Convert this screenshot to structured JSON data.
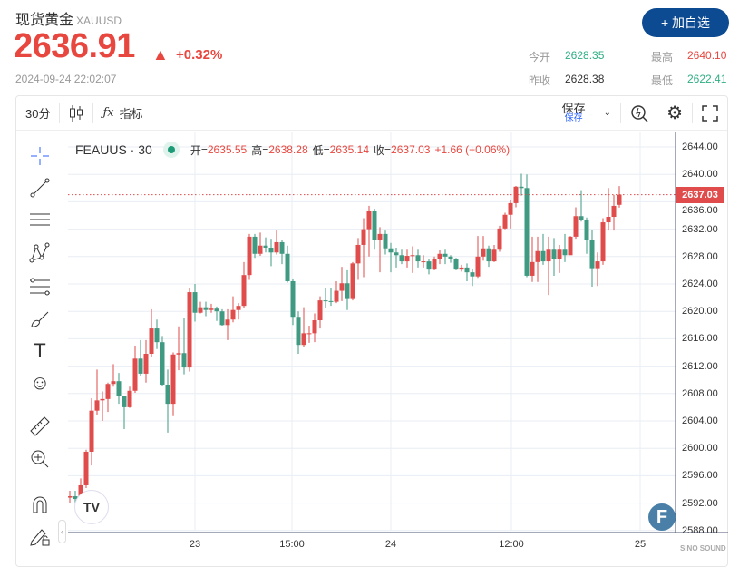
{
  "header": {
    "name": "现货黄金",
    "code": "XAUUSD",
    "price": "2636.91",
    "change_pct": "+0.32%",
    "timestamp": "2024-09-24 22:02:07",
    "add_button": "+ 加自选",
    "stats": [
      {
        "label": "今开",
        "value": "2628.35",
        "color": "green"
      },
      {
        "label": "最高",
        "value": "2640.10",
        "color": "red"
      },
      {
        "label": "昨收",
        "value": "2628.38",
        "color": "black"
      },
      {
        "label": "最低",
        "value": "2622.41",
        "color": "green"
      }
    ]
  },
  "toolbar": {
    "interval": "30分",
    "indicators": "指标",
    "save": "保存",
    "save_sub": "保存",
    "icons": [
      "candlestick-icon",
      "function-icon",
      "chevron-down-icon",
      "replay-icon",
      "gear-icon",
      "fullscreen-icon"
    ]
  },
  "left_tools": [
    "crosshair-icon",
    "trend-line-icon",
    "horizontal-lines-icon",
    "pattern-icon",
    "fib-icon",
    "brush-icon",
    "text-icon",
    "emoji-icon",
    "ruler-icon",
    "zoom-in-icon",
    "magnet-icon",
    "lock-draw-icon"
  ],
  "legend": {
    "symbol": "FEAUUS · 30",
    "open_label": "开=",
    "open": "2635.55",
    "high_label": "高=",
    "high": "2638.28",
    "low_label": "低=",
    "low": "2635.14",
    "close_label": "收=",
    "close": "2637.03",
    "change": "+1.66 (+0.06%)"
  },
  "watermark": "SINO SOUND",
  "chart_data": {
    "type": "candlestick",
    "interval": "30",
    "symbol": "FEAUUS",
    "colors": {
      "up": "#e04b4b",
      "down": "#3f9a81"
    },
    "ylim": [
      2586,
      2646
    ],
    "yticks": [
      "2644.00",
      "2640.00",
      "2636.00",
      "2632.00",
      "2628.00",
      "2624.00",
      "2620.00",
      "2616.00",
      "2612.00",
      "2608.00",
      "2604.00",
      "2600.00",
      "2596.00",
      "2592.00",
      "2588.00"
    ],
    "xticks": [
      "23",
      "15:00",
      "24",
      "12:00",
      "25"
    ],
    "last_price": "2637.03",
    "grid": true,
    "ohlc": [
      [
        2592.8,
        2593.8,
        2592.0,
        2593.0
      ],
      [
        2593.0,
        2593.8,
        2591.5,
        2592.6
      ],
      [
        2592.6,
        2595.6,
        2592.2,
        2594.6
      ],
      [
        2594.6,
        2599.8,
        2594.2,
        2599.5
      ],
      [
        2599.5,
        2607.3,
        2597.5,
        2605.5
      ],
      [
        2605.5,
        2611.5,
        2604.9,
        2607.0
      ],
      [
        2607.0,
        2608.3,
        2604.0,
        2607.2
      ],
      [
        2607.2,
        2609.6,
        2605.3,
        2609.4
      ],
      [
        2609.4,
        2612.3,
        2609.0,
        2609.8
      ],
      [
        2609.8,
        2611.0,
        2606.5,
        2607.7
      ],
      [
        2607.7,
        2607.1,
        2602.8,
        2606.0
      ],
      [
        2606.0,
        2609.0,
        2605.9,
        2608.4
      ],
      [
        2608.4,
        2615.0,
        2608.1,
        2613.1
      ],
      [
        2613.1,
        2615.8,
        2610.5,
        2610.9
      ],
      [
        2610.9,
        2615.8,
        2609.6,
        2613.8
      ],
      [
        2613.8,
        2620.3,
        2613.3,
        2617.5
      ],
      [
        2617.5,
        2618.8,
        2614.5,
        2615.5
      ],
      [
        2615.5,
        2616.4,
        2609.1,
        2609.3
      ],
      [
        2609.3,
        2611.5,
        2602.3,
        2606.5
      ],
      [
        2606.5,
        2614.0,
        2604.7,
        2613.7
      ],
      [
        2613.7,
        2617.8,
        2611.4,
        2613.9
      ],
      [
        2613.9,
        2619.0,
        2610.8,
        2611.8
      ],
      [
        2611.8,
        2623.4,
        2611.2,
        2622.8
      ],
      [
        2622.8,
        2624.0,
        2618.5,
        2619.8
      ],
      [
        2619.8,
        2621.4,
        2619.7,
        2620.6
      ],
      [
        2620.6,
        2621.4,
        2619.3,
        2620.2
      ],
      [
        2620.2,
        2621.1,
        2619.8,
        2620.4
      ],
      [
        2620.4,
        2620.7,
        2618.6,
        2620.0
      ],
      [
        2620.0,
        2620.3,
        2617.9,
        2618.0
      ],
      [
        2618.0,
        2620.3,
        2615.8,
        2618.8
      ],
      [
        2618.8,
        2622.2,
        2618.4,
        2620.2
      ],
      [
        2620.2,
        2621.2,
        2618.8,
        2620.8
      ],
      [
        2620.8,
        2627.2,
        2620.5,
        2625.3
      ],
      [
        2625.3,
        2631.3,
        2624.6,
        2630.9
      ],
      [
        2630.9,
        2631.3,
        2627.8,
        2628.4
      ],
      [
        2628.4,
        2631.5,
        2628.1,
        2629.6
      ],
      [
        2629.6,
        2630.8,
        2628.6,
        2629.3
      ],
      [
        2629.3,
        2630.6,
        2626.6,
        2628.6
      ],
      [
        2628.6,
        2631.8,
        2628.3,
        2630.1
      ],
      [
        2630.1,
        2630.4,
        2626.9,
        2628.4
      ],
      [
        2628.4,
        2629.6,
        2624.2,
        2624.4
      ],
      [
        2624.4,
        2624.8,
        2618.0,
        2619.2
      ],
      [
        2619.2,
        2620.0,
        2613.8,
        2615.1
      ],
      [
        2615.1,
        2620.6,
        2614.8,
        2616.8
      ],
      [
        2616.8,
        2617.9,
        2615.4,
        2616.8
      ],
      [
        2616.8,
        2619.7,
        2615.5,
        2618.7
      ],
      [
        2618.7,
        2622.2,
        2617.5,
        2621.6
      ],
      [
        2621.6,
        2623.4,
        2620.5,
        2621.5
      ],
      [
        2621.5,
        2623.4,
        2620.8,
        2621.4
      ],
      [
        2621.4,
        2624.4,
        2621.2,
        2623.0
      ],
      [
        2623.0,
        2626.5,
        2621.5,
        2624.1
      ],
      [
        2624.1,
        2626.0,
        2620.2,
        2621.8
      ],
      [
        2621.8,
        2627.2,
        2621.6,
        2627.0
      ],
      [
        2627.0,
        2630.7,
        2624.6,
        2629.7
      ],
      [
        2629.7,
        2633.6,
        2625.0,
        2632.0
      ],
      [
        2632.0,
        2635.4,
        2628.0,
        2634.6
      ],
      [
        2634.6,
        2635.0,
        2629.0,
        2630.4
      ],
      [
        2630.4,
        2632.3,
        2625.7,
        2631.3
      ],
      [
        2631.3,
        2631.8,
        2628.3,
        2629.2
      ],
      [
        2629.2,
        2630.0,
        2625.7,
        2628.6
      ],
      [
        2628.6,
        2629.3,
        2626.4,
        2628.2
      ],
      [
        2628.2,
        2629.0,
        2626.9,
        2627.3
      ],
      [
        2627.3,
        2629.0,
        2626.4,
        2628.1
      ],
      [
        2628.1,
        2629.5,
        2625.6,
        2628.2
      ],
      [
        2628.2,
        2629.0,
        2626.4,
        2627.3
      ],
      [
        2627.3,
        2628.2,
        2626.4,
        2627.3
      ],
      [
        2627.3,
        2627.6,
        2625.4,
        2626.1
      ],
      [
        2626.1,
        2628.0,
        2626.0,
        2627.7
      ],
      [
        2627.7,
        2628.9,
        2626.9,
        2628.4
      ],
      [
        2628.4,
        2629.0,
        2626.9,
        2628.0
      ],
      [
        2628.0,
        2628.2,
        2627.1,
        2627.6
      ],
      [
        2627.6,
        2627.8,
        2626.0,
        2626.1
      ],
      [
        2626.1,
        2626.8,
        2625.8,
        2626.4
      ],
      [
        2626.4,
        2627.0,
        2624.4,
        2625.7
      ],
      [
        2625.7,
        2626.2,
        2623.7,
        2625.1
      ],
      [
        2625.1,
        2631.0,
        2624.9,
        2628.0
      ],
      [
        2628.0,
        2631.0,
        2627.4,
        2629.2
      ],
      [
        2629.2,
        2629.6,
        2626.5,
        2627.3
      ],
      [
        2627.3,
        2629.7,
        2627.2,
        2629.0
      ],
      [
        2629.0,
        2632.5,
        2628.7,
        2632.1
      ],
      [
        2632.1,
        2634.4,
        2632.0,
        2634.1
      ],
      [
        2634.1,
        2636.3,
        2632.1,
        2635.8
      ],
      [
        2635.8,
        2638.3,
        2635.2,
        2638.2
      ],
      [
        2638.2,
        2640.1,
        2636.9,
        2638.0
      ],
      [
        2638.0,
        2640.0,
        2625.0,
        2625.2
      ],
      [
        2625.2,
        2630.9,
        2624.3,
        2627.2
      ],
      [
        2627.2,
        2630.9,
        2624.3,
        2628.8
      ],
      [
        2628.8,
        2631.3,
        2626.8,
        2627.3
      ],
      [
        2627.3,
        2630.9,
        2622.4,
        2629.0
      ],
      [
        2629.0,
        2630.7,
        2625.2,
        2627.7
      ],
      [
        2627.7,
        2629.7,
        2625.6,
        2629.0
      ],
      [
        2629.0,
        2631.3,
        2627.2,
        2628.2
      ],
      [
        2628.2,
        2631.0,
        2628.6,
        2630.9
      ],
      [
        2630.9,
        2635.2,
        2630.6,
        2633.9
      ],
      [
        2633.9,
        2637.7,
        2633.1,
        2633.3
      ],
      [
        2633.3,
        2633.7,
        2628.4,
        2630.4
      ],
      [
        2630.4,
        2631.9,
        2623.6,
        2626.3
      ],
      [
        2626.3,
        2628.6,
        2623.7,
        2627.3
      ],
      [
        2627.3,
        2633.6,
        2626.8,
        2633.0
      ],
      [
        2633.0,
        2638.0,
        2631.8,
        2633.8
      ],
      [
        2633.8,
        2637.0,
        2631.8,
        2635.4
      ],
      [
        2635.55,
        2638.28,
        2635.14,
        2637.03
      ]
    ]
  }
}
